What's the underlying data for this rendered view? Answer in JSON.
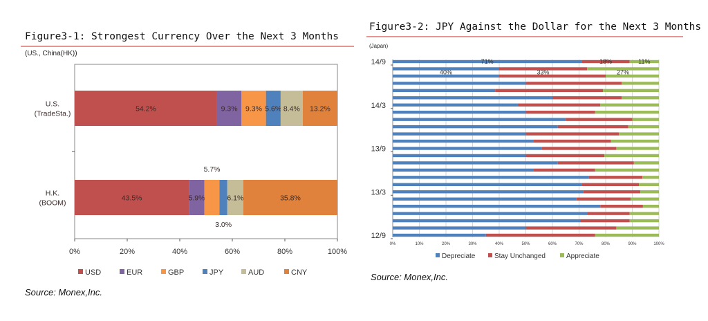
{
  "chart_data": [
    {
      "type": "bar",
      "orientation": "horizontal",
      "stacked": "percent",
      "title": "Figure3-1: Strongest Currency Over the Next 3 Months",
      "subtitle": "(US., China(HK))",
      "categories": [
        "U.S.\n(TradeSta.)",
        "H.K.\n(BOOM)"
      ],
      "series": [
        {
          "name": "USD",
          "color": "#c0504d",
          "values": [
            54.2,
            43.5
          ]
        },
        {
          "name": "EUR",
          "color": "#8064a2",
          "values": [
            9.3,
            5.9
          ]
        },
        {
          "name": "GBP",
          "color": "#f79646",
          "values": [
            9.3,
            5.7
          ]
        },
        {
          "name": "JPY",
          "color": "#4f81bd",
          "values": [
            5.6,
            3.0
          ]
        },
        {
          "name": "AUD",
          "color": "#c4bd97",
          "values": [
            8.4,
            6.1
          ]
        },
        {
          "name": "CNY",
          "color": "#e0823c",
          "values": [
            13.2,
            35.8
          ]
        }
      ],
      "data_labels": [
        [
          "54.2%",
          "9.3%",
          "9.3%",
          "5.6%",
          "8.4%",
          "13.2%"
        ],
        [
          "43.5%",
          "5.9%",
          "5.7%",
          "3.0%",
          "6.1%",
          "35.8%"
        ]
      ],
      "xlim": [
        0,
        100
      ],
      "xticks": [
        "0%",
        "20%",
        "40%",
        "60%",
        "80%",
        "100%"
      ],
      "legend": "bottom",
      "grid": false,
      "source": "Source: Monex,Inc."
    },
    {
      "type": "bar",
      "orientation": "horizontal",
      "stacked": "percent",
      "title": "Figure3-2: JPY Against the Dollar for the Next 3 Months",
      "subtitle": "(Japan)",
      "categories": [
        "14/9",
        "",
        "",
        "",
        "",
        "",
        "14/3",
        "",
        "",
        "",
        "",
        "",
        "13/9",
        "",
        "",
        "",
        "",
        "",
        "13/3",
        "",
        "",
        "",
        "",
        "",
        "12/9"
      ],
      "series": [
        {
          "name": "Depreciate",
          "color": "#4f81bd",
          "values": [
            71,
            40,
            40,
            50,
            38.5,
            60,
            47,
            50,
            65,
            62,
            50,
            53,
            56,
            50,
            62,
            53,
            73.6,
            71,
            71.6,
            69,
            78,
            73,
            70.4,
            50,
            35
          ]
        },
        {
          "name": "Stay Unchanged",
          "color": "#c0504d",
          "values": [
            18,
            33,
            40,
            36,
            40.5,
            26,
            31,
            26,
            25,
            26.5,
            35,
            29,
            28,
            29.5,
            28.6,
            23,
            20.2,
            21.5,
            21.4,
            20.4,
            16,
            16,
            18.6,
            34,
            41
          ]
        },
        {
          "name": "Appreciate",
          "color": "#9bbb59",
          "values": [
            11,
            27,
            20,
            14,
            21,
            14,
            22,
            24,
            10,
            11.5,
            15,
            18,
            16,
            20.5,
            9.4,
            24,
            6.2,
            7.5,
            7,
            10.6,
            6,
            11,
            11,
            16,
            24
          ]
        }
      ],
      "data_labels": [
        [
          "71%",
          "18%",
          "11%"
        ],
        [
          "40%",
          "33%",
          "27%"
        ]
      ],
      "xlim": [
        0,
        100
      ],
      "xticks": [
        "0%",
        "10%",
        "20%",
        "30%",
        "40%",
        "50%",
        "60%",
        "70%",
        "80%",
        "90%",
        "100%"
      ],
      "legend": "bottom",
      "grid": true,
      "source": "Source: Monex,Inc."
    }
  ]
}
